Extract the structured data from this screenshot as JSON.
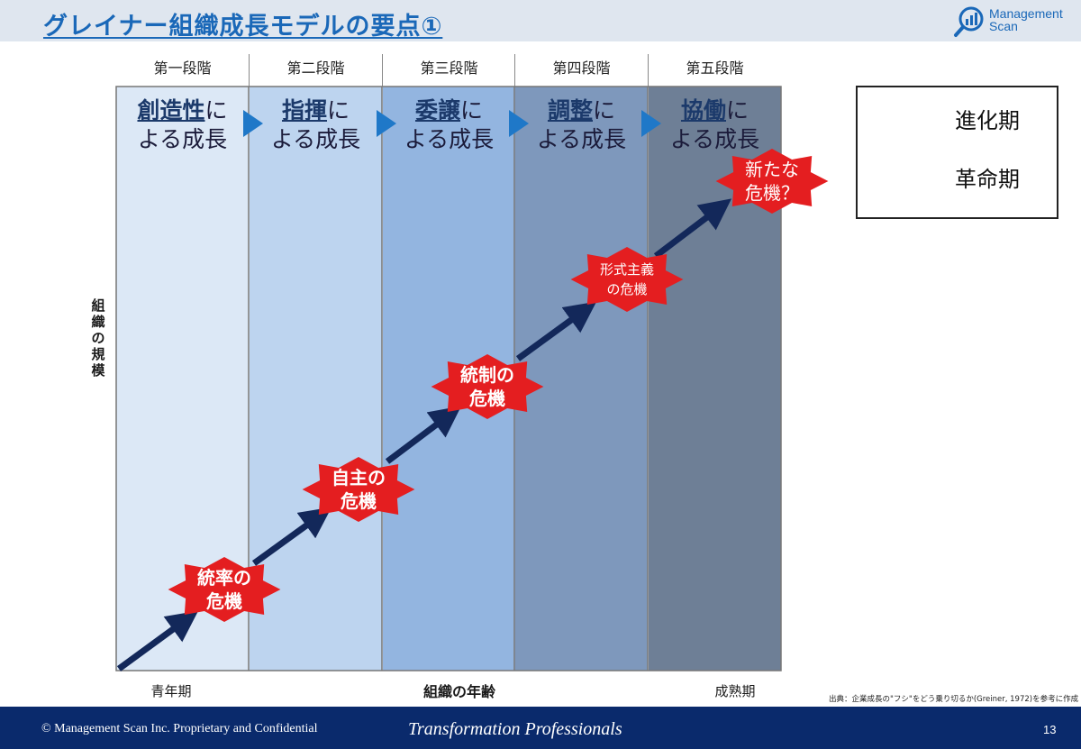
{
  "header": {
    "title": "グレイナー組織成長モデルの要点①",
    "logo": {
      "line1": "Management",
      "line2": "Scan",
      "icon": "bar-chart-magnifier-icon"
    }
  },
  "stages": [
    {
      "label": "第一段階",
      "key": "創造性",
      "suffix": "に",
      "line2": "よる成長"
    },
    {
      "label": "第二段階",
      "key": "指揮",
      "suffix": "に",
      "line2": "よる成長"
    },
    {
      "label": "第三段階",
      "key": "委譲",
      "suffix": "に",
      "line2": "よる成長"
    },
    {
      "label": "第四段階",
      "key": "調整",
      "suffix": "に",
      "line2": "よる成長"
    },
    {
      "label": "第五段階",
      "key": "協働",
      "suffix": "に",
      "line2": "よる成長"
    }
  ],
  "crises": [
    {
      "line1": "統率の",
      "line2": "危機"
    },
    {
      "line1": "自主の",
      "line2": "危機"
    },
    {
      "line1": "統制の",
      "line2": "危機"
    },
    {
      "line1": "形式主義",
      "line2": "の危機"
    },
    {
      "line1": "新たな",
      "line2": "危機？"
    }
  ],
  "legend": {
    "evolution": "進化期",
    "revolution": "革命期"
  },
  "axes": {
    "y_label": [
      "組",
      "織",
      "の",
      "規",
      "模"
    ],
    "x_label": "組織の年齢",
    "x_left": "青年期",
    "x_right": "成熟期"
  },
  "source": "出典：企業成長の\"フシ\"をどう乗り切るか(Greiner, 1972)を参考に作成",
  "footer": {
    "copyright": "© Management Scan Inc. Proprietary and Confidential",
    "tagline": "Transformation Professionals",
    "page": "13"
  },
  "colors": {
    "accent": "#1a68b8",
    "crisis_red": "#e41e20",
    "arrow_navy": "#13285a",
    "footer_navy": "#0a2a6c",
    "stage_fills": [
      "#dce8f6",
      "#bdd4ef",
      "#93b5e0",
      "#7e98bc",
      "#6e7f96"
    ]
  }
}
